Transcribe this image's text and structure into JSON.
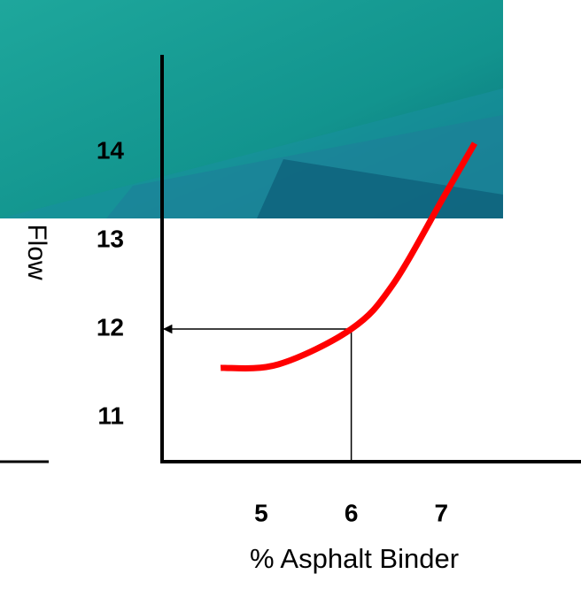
{
  "chart_data": {
    "type": "line",
    "x": [
      4.55,
      5.19,
      6.0,
      6.46,
      7.03,
      7.37
    ],
    "values": [
      11.56,
      11.6,
      12.0,
      12.5,
      13.5,
      14.1
    ],
    "color": "#ff0000",
    "xlim": [
      3.9,
      8.55
    ],
    "ylim": [
      10.5,
      15.1
    ],
    "xticks": [
      5,
      6,
      7
    ],
    "yticks": [
      11,
      12,
      13,
      14
    ],
    "x_label": "% Asphalt Binder",
    "y_label": "Flow",
    "reference": {
      "x": 6,
      "y": 12
    }
  }
}
